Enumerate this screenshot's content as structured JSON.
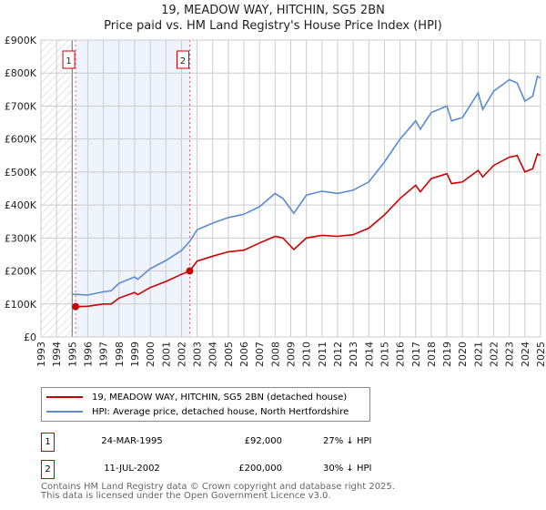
{
  "title_line1": "19, MEADOW WAY, HITCHIN, SG5 2BN",
  "title_line2": "Price paid vs. HM Land Registry's House Price Index (HPI)",
  "chart_data": {
    "type": "line",
    "xlim": [
      1993,
      2025
    ],
    "ylim": [
      0,
      900000
    ],
    "y_ticks": [
      0,
      100000,
      200000,
      300000,
      400000,
      500000,
      600000,
      700000,
      800000,
      900000
    ],
    "y_tick_labels": [
      "£0",
      "£100K",
      "£200K",
      "£300K",
      "£400K",
      "£500K",
      "£600K",
      "£700K",
      "£800K",
      "£900K"
    ],
    "x_ticks": [
      1993,
      1994,
      1995,
      1996,
      1997,
      1998,
      1999,
      2000,
      2001,
      2002,
      2003,
      2004,
      2005,
      2006,
      2007,
      2008,
      2009,
      2010,
      2011,
      2012,
      2013,
      2014,
      2015,
      2016,
      2017,
      2018,
      2019,
      2020,
      2021,
      2022,
      2023,
      2024,
      2025
    ],
    "grid": true,
    "hatched_range": [
      1993,
      1995
    ],
    "shaded_range": [
      1995.22,
      2002.53
    ],
    "series": [
      {
        "name": "19, MEADOW WAY, HITCHIN, SG5 2BN (detached house)",
        "color": "#cc0000",
        "x": [
          1995.22,
          1996,
          1997,
          1997.5,
          1998,
          1999,
          1999.2,
          2000,
          2001,
          2002,
          2002.53,
          2003,
          2004,
          2005,
          2006,
          2007,
          2008,
          2008.5,
          2009.2,
          2010,
          2011,
          2012,
          2013,
          2014,
          2015,
          2016,
          2017,
          2017.3,
          2018,
          2019,
          2019.3,
          2020,
          2021,
          2021.3,
          2022,
          2023,
          2023.5,
          2024,
          2024.5,
          2024.8,
          2025
        ],
        "y": [
          92000,
          93000,
          100000,
          100000,
          118000,
          135000,
          128000,
          150000,
          168000,
          190000,
          200000,
          230000,
          245000,
          258000,
          263000,
          285000,
          305000,
          300000,
          265000,
          300000,
          308000,
          305000,
          310000,
          330000,
          370000,
          420000,
          460000,
          440000,
          480000,
          495000,
          465000,
          470000,
          505000,
          485000,
          520000,
          545000,
          550000,
          500000,
          510000,
          555000,
          550000
        ]
      },
      {
        "name": "HPI: Average price, detached house, North Hertfordshire",
        "color": "#5b8bd0",
        "x": [
          1995,
          1996,
          1997,
          1997.5,
          1998,
          1999,
          1999.2,
          2000,
          2001,
          2002,
          2002.53,
          2003,
          2004,
          2005,
          2006,
          2007,
          2008,
          2008.5,
          2009.2,
          2010,
          2011,
          2012,
          2013,
          2014,
          2015,
          2016,
          2017,
          2017.3,
          2018,
          2019,
          2019.3,
          2020,
          2021,
          2021.3,
          2022,
          2023,
          2023.5,
          2024,
          2024.5,
          2024.8,
          2025
        ],
        "y": [
          130000,
          127000,
          137000,
          140000,
          163000,
          182000,
          175000,
          207000,
          232000,
          262000,
          290000,
          325000,
          345000,
          362000,
          372000,
          395000,
          435000,
          420000,
          375000,
          430000,
          442000,
          435000,
          445000,
          470000,
          530000,
          600000,
          655000,
          630000,
          680000,
          700000,
          655000,
          665000,
          740000,
          690000,
          745000,
          780000,
          770000,
          715000,
          730000,
          790000,
          785000
        ]
      }
    ],
    "sales": [
      {
        "label": "1",
        "x": 1995.22,
        "price": 92000,
        "date": "24-MAR-1995",
        "price_text": "£92,000",
        "relation": "27% ↓ HPI"
      },
      {
        "label": "2",
        "x": 2002.53,
        "price": 200000,
        "date": "11-JUL-2002",
        "price_text": "£200,000",
        "relation": "30% ↓ HPI"
      }
    ]
  },
  "footer_line1": "Contains HM Land Registry data © Crown copyright and database right 2025.",
  "footer_line2": "This data is licensed under the Open Government Licence v3.0."
}
